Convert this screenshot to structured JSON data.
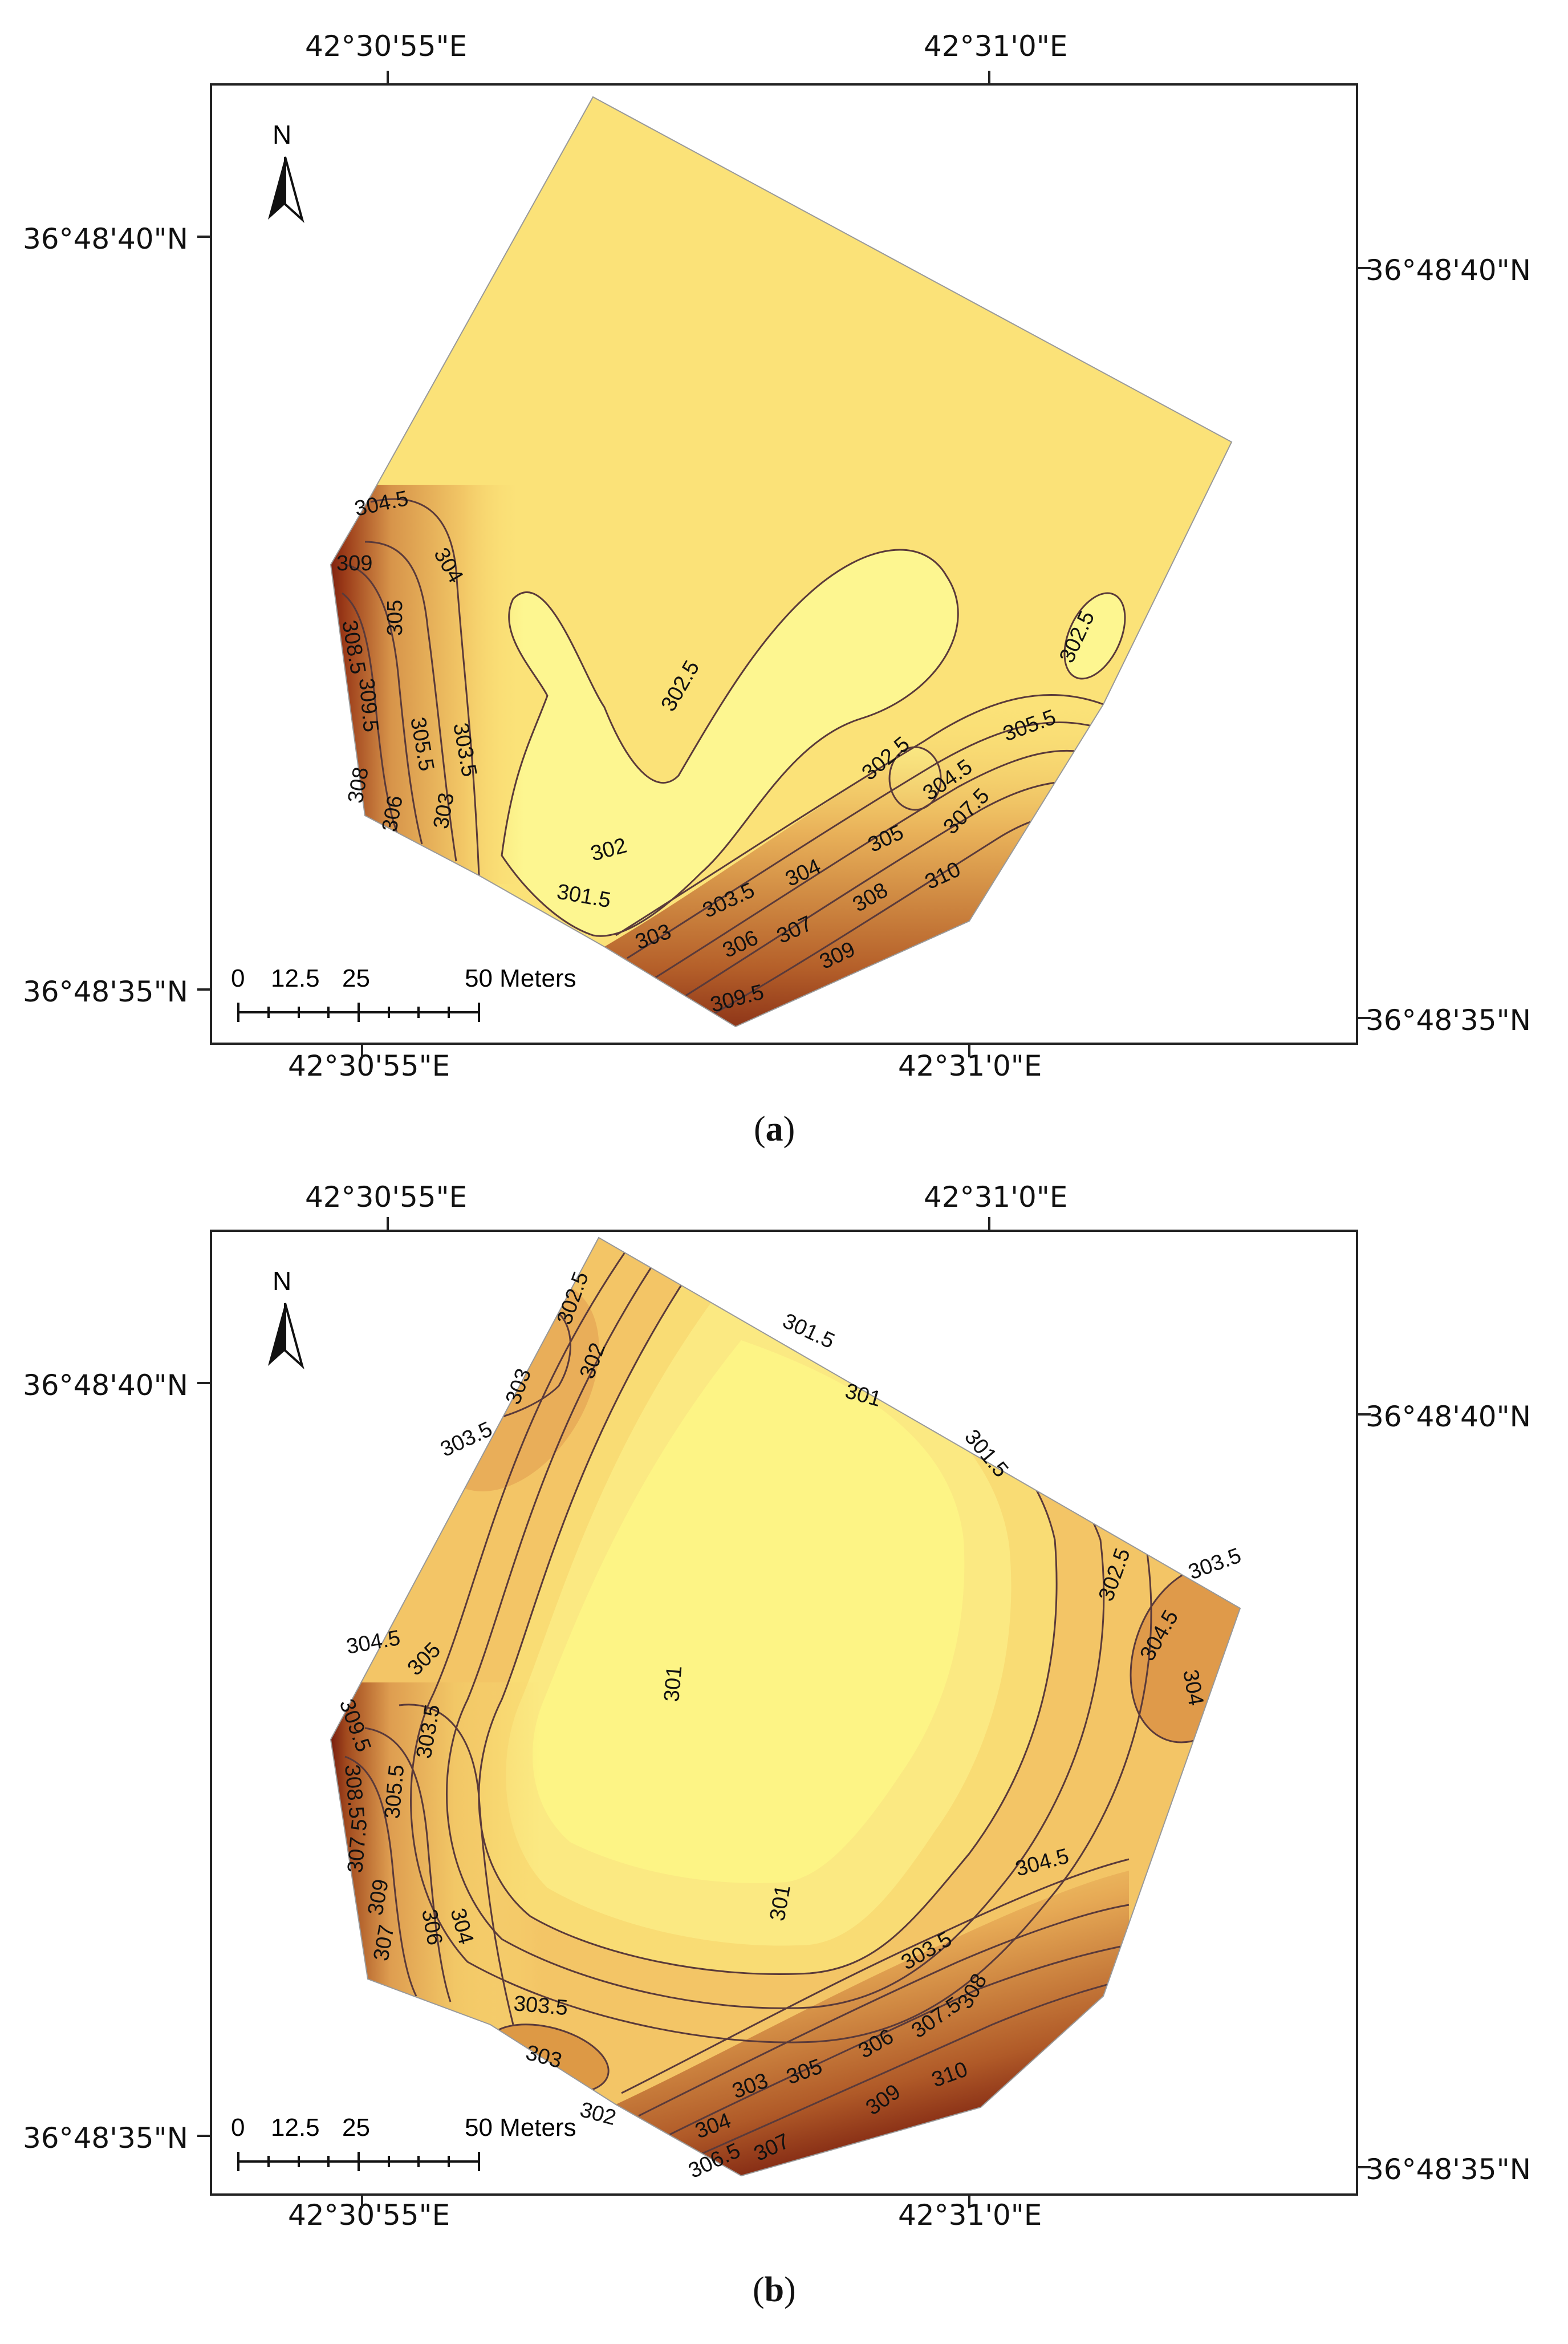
{
  "maps": [
    {
      "caption_open": "(",
      "caption_letter": "a",
      "caption_close": ")",
      "top_lon_labels": [
        "42°30'55\"E",
        "42°31'0\"E"
      ],
      "bottom_lon_labels": [
        "42°30'55\"E",
        "42°31'0\"E"
      ],
      "left_lat_labels": [
        "36°48'40\"N",
        "36°48'35\"N"
      ],
      "right_lat_labels": [
        "36°48'40\"N",
        "36°48'35\"N"
      ],
      "north_label": "N",
      "scale_ticks": [
        "0",
        "12.5",
        "25",
        "50 Meters"
      ],
      "contour_labels": [
        "304.5",
        "309",
        "304",
        "308.5",
        "305",
        "309.5",
        "305.5",
        "303.5",
        "308",
        "306",
        "303",
        "302.5",
        "302.5",
        "302.5",
        "305.5",
        "304.5",
        "307.5",
        "302",
        "301.5",
        "304",
        "305",
        "303.5",
        "308",
        "310",
        "303",
        "306",
        "307",
        "309",
        "309.5"
      ]
    },
    {
      "caption_open": "(",
      "caption_letter": "b",
      "caption_close": ")",
      "top_lon_labels": [
        "42°30'55\"E",
        "42°31'0\"E"
      ],
      "bottom_lon_labels": [
        "42°30'55\"E",
        "42°31'0\"E"
      ],
      "left_lat_labels": [
        "36°48'40\"N",
        "36°48'35\"N"
      ],
      "right_lat_labels": [
        "36°48'40\"N",
        "36°48'35\"N"
      ],
      "north_label": "N",
      "scale_ticks": [
        "0",
        "12.5",
        "25",
        "50 Meters"
      ],
      "contour_labels": [
        "302.5",
        "303",
        "302",
        "303.5",
        "301.5",
        "301",
        "301.5",
        "302.5",
        "303.5",
        "304.5",
        "304",
        "304.5",
        "305",
        "309.5",
        "303.5",
        "308.5",
        "305.5",
        "301",
        "307.5",
        "309",
        "306",
        "307",
        "304",
        "304.5",
        "301",
        "303.5",
        "303.5",
        "308",
        "307.5",
        "306",
        "303",
        "302",
        "303",
        "305",
        "309",
        "310",
        "304",
        "306.5",
        "307"
      ]
    }
  ],
  "colors": {
    "low": "#fdf87e",
    "mid": "#f3c566",
    "high": "#c87830",
    "max": "#6a0e08",
    "contour": "#5a3a3a"
  }
}
